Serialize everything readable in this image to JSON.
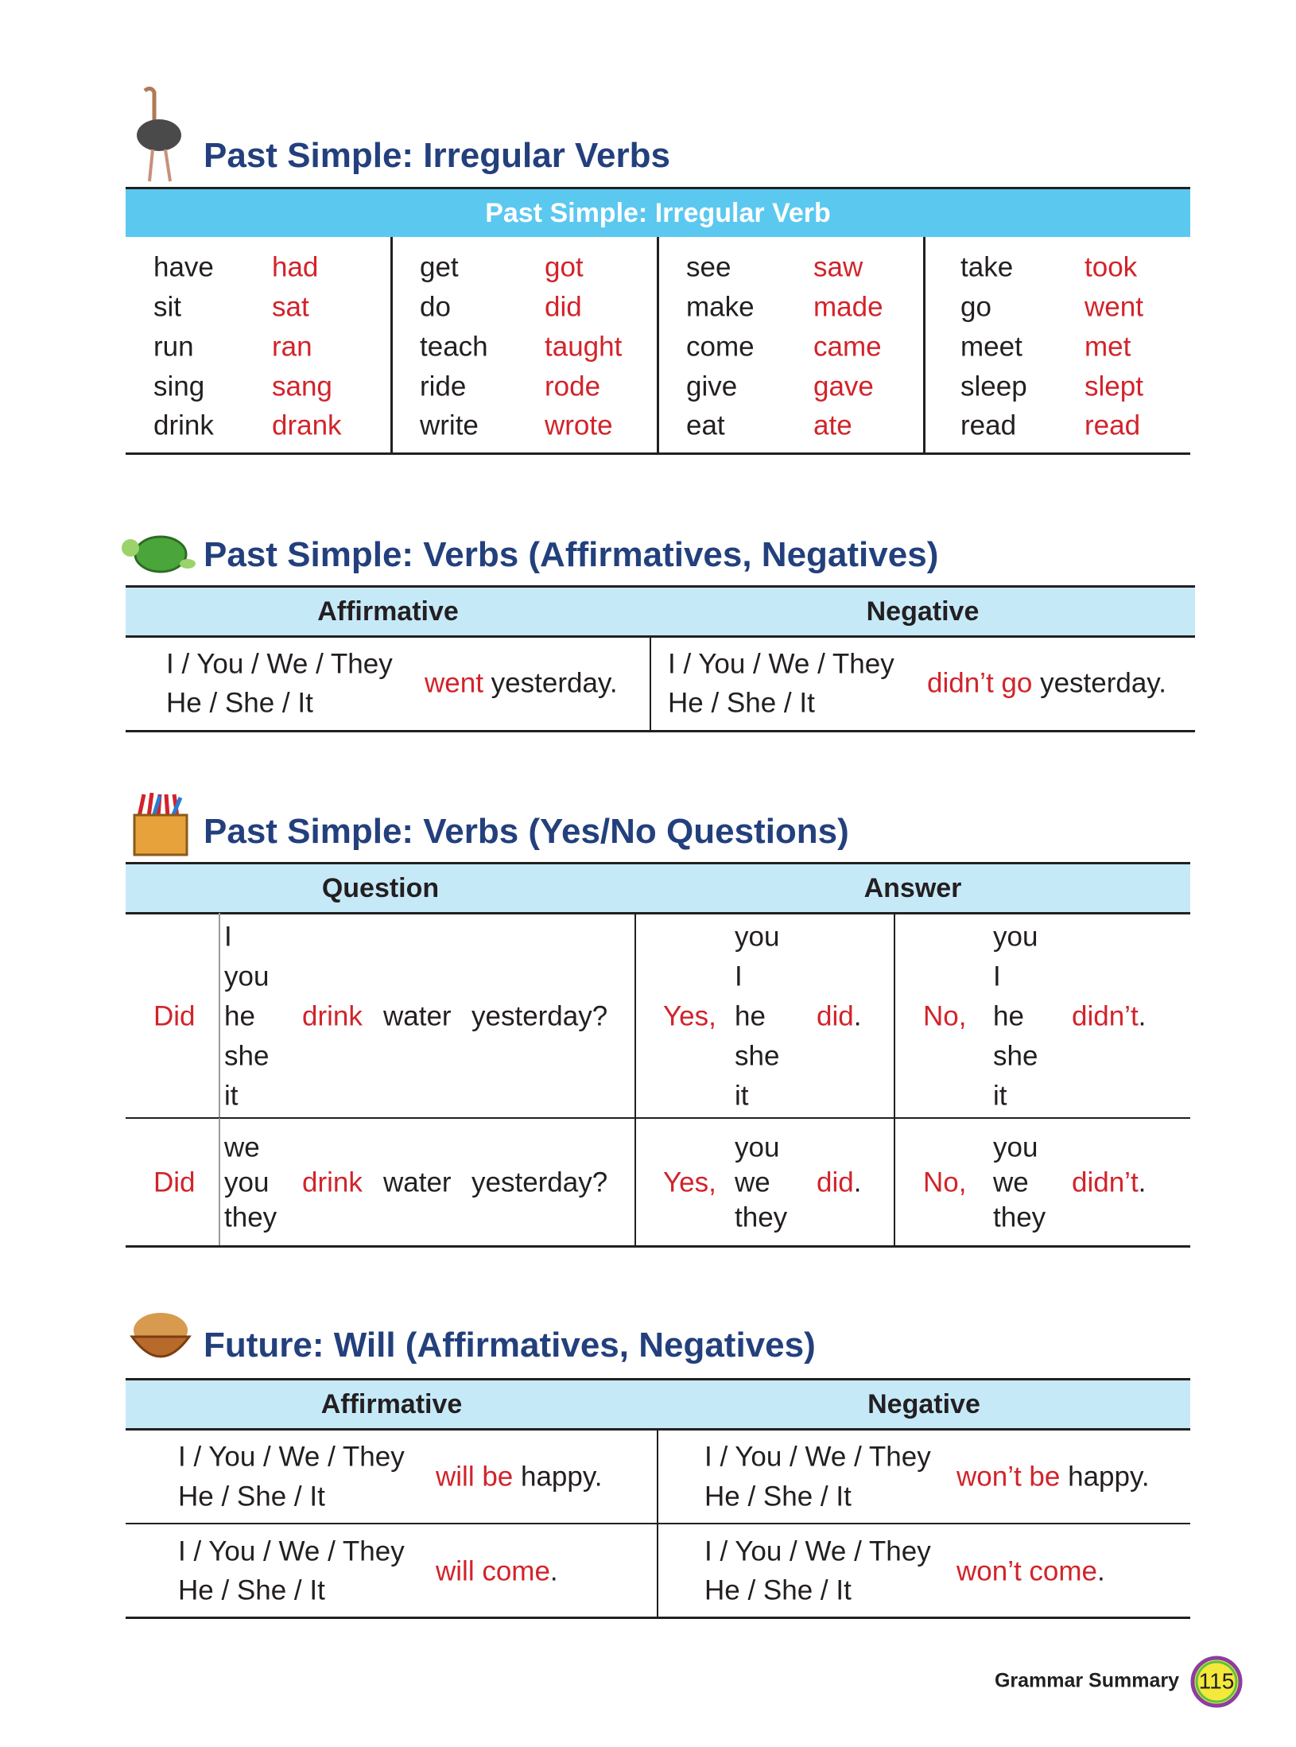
{
  "sections": [
    {
      "title": "Past Simple: Irregular Verbs",
      "header": "Past Simple: Irregular Verb",
      "groups": [
        [
          [
            "have",
            "had"
          ],
          [
            "sit",
            "sat"
          ],
          [
            "run",
            "ran"
          ],
          [
            "sing",
            "sang"
          ],
          [
            "drink",
            "drank"
          ]
        ],
        [
          [
            "get",
            "got"
          ],
          [
            "do",
            "did"
          ],
          [
            "teach",
            "taught"
          ],
          [
            "ride",
            "rode"
          ],
          [
            "write",
            "wrote"
          ]
        ],
        [
          [
            "see",
            "saw"
          ],
          [
            "make",
            "made"
          ],
          [
            "come",
            "came"
          ],
          [
            "give",
            "gave"
          ],
          [
            "eat",
            "ate"
          ]
        ],
        [
          [
            "take",
            "took"
          ],
          [
            "go",
            "went"
          ],
          [
            "meet",
            "met"
          ],
          [
            "sleep",
            "slept"
          ],
          [
            "read",
            "read"
          ]
        ]
      ]
    },
    {
      "title": "Past Simple: Verbs (Affirmatives, Negatives)",
      "headers": [
        "Affirmative",
        "Negative"
      ],
      "rows": [
        {
          "affirmative": {
            "subjects": [
              "I / You / We / They",
              "He / She / It"
            ],
            "verb": "went",
            "rest": "yesterday."
          },
          "negative": {
            "subjects": [
              "I / You / We / They",
              "He / She / It"
            ],
            "verb": "didn’t go",
            "rest": "yesterday."
          }
        }
      ]
    },
    {
      "title": "Past Simple: Verbs (Yes/No Questions)",
      "headers": [
        "Question",
        "Answer"
      ],
      "rows": [
        {
          "aux": "Did",
          "pronouns": [
            "I",
            "you",
            "he",
            "she",
            "it"
          ],
          "verb": "drink",
          "object": "water",
          "time": "yesterday?",
          "yes": {
            "word": "Yes,",
            "pronouns": [
              "you",
              "I",
              "he",
              "she",
              "it"
            ],
            "verb": "did",
            "end": "."
          },
          "no": {
            "word": "No,",
            "pronouns": [
              "you",
              "I",
              "he",
              "she",
              "it"
            ],
            "verb": "didn’t",
            "end": "."
          }
        },
        {
          "aux": "Did",
          "pronouns": [
            "we",
            "you",
            "they"
          ],
          "verb": "drink",
          "object": "water",
          "time": "yesterday?",
          "yes": {
            "word": "Yes,",
            "pronouns": [
              "you",
              "we",
              "they"
            ],
            "verb": "did",
            "end": "."
          },
          "no": {
            "word": "No,",
            "pronouns": [
              "you",
              "we",
              "they"
            ],
            "verb": "didn’t",
            "end": "."
          }
        }
      ]
    },
    {
      "title": "Future: Will (Affirmatives, Negatives)",
      "headers": [
        "Affirmative",
        "Negative"
      ],
      "rows": [
        {
          "affirmative": {
            "subjects": [
              "I / You / We / They",
              "He / She / It"
            ],
            "verb": "will be",
            "rest": "happy."
          },
          "negative": {
            "subjects": [
              "I / You / We / They",
              "He / She / It"
            ],
            "verb": "won’t be",
            "rest": "happy."
          }
        },
        {
          "affirmative": {
            "subjects": [
              "I / You / We / They",
              "He / She / It"
            ],
            "verb": "will come",
            "rest": "."
          },
          "negative": {
            "subjects": [
              "I / You / We / They",
              "He / She / It"
            ],
            "verb": "won’t come",
            "rest": "."
          }
        }
      ]
    }
  ],
  "footer": {
    "label": "Grammar Summary",
    "page": "115"
  }
}
